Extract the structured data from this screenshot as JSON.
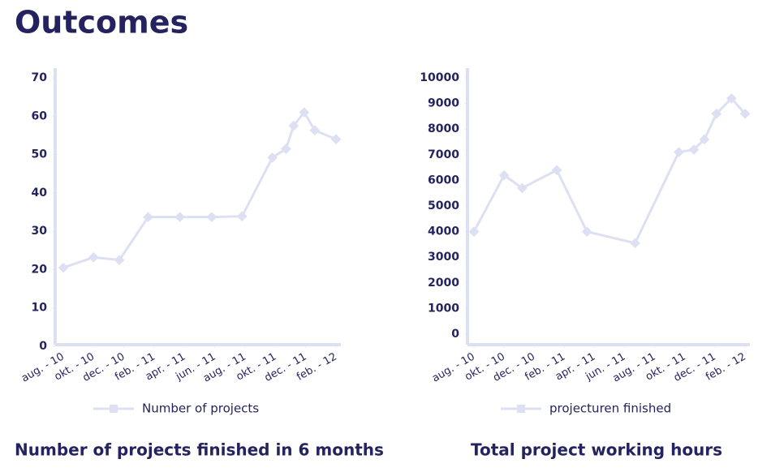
{
  "title": "Outcomes",
  "chart_data": [
    {
      "type": "line",
      "title": "Number of projects finished in 6 months",
      "x": [
        0,
        2,
        3.7,
        5.6,
        7.7,
        9.8,
        11.8,
        13.8,
        14.7,
        15.2,
        15.9,
        16.6,
        18
      ],
      "series": [
        {
          "name": "Number of projects",
          "color": "#dde0f3",
          "values": [
            20.5,
            23.2,
            22.5,
            33.7,
            33.7,
            33.7,
            33.9,
            49.2,
            51.5,
            57.5,
            61,
            56.3,
            54
          ]
        }
      ],
      "xlim": [
        0,
        18
      ],
      "xticks": [
        {
          "value": 0,
          "label": "aug. - 10"
        },
        {
          "value": 2,
          "label": "okt. - 10"
        },
        {
          "value": 4,
          "label": "dec. - 10"
        },
        {
          "value": 6,
          "label": "feb. - 11"
        },
        {
          "value": 8,
          "label": "apr. - 11"
        },
        {
          "value": 10,
          "label": "jun. - 11"
        },
        {
          "value": 12,
          "label": "aug. - 11"
        },
        {
          "value": 14,
          "label": "okt. - 11"
        },
        {
          "value": 16,
          "label": "dec. - 11"
        },
        {
          "value": 18,
          "label": "feb. - 12"
        }
      ],
      "ylim": [
        0,
        70
      ],
      "yticks": [
        0,
        10,
        20,
        30,
        40,
        50,
        60,
        70
      ]
    },
    {
      "type": "line",
      "title": "Total project working hours",
      "x": [
        0,
        2,
        3.2,
        5.5,
        7.5,
        10.7,
        13.6,
        14.6,
        15.3,
        16.1,
        17.1,
        18
      ],
      "series": [
        {
          "name": "projecturen finished",
          "color": "#dde0f3",
          "values": [
            4000,
            6200,
            5700,
            6400,
            4000,
            3550,
            7100,
            7200,
            7600,
            8600,
            9200,
            8600
          ]
        }
      ],
      "xlim": [
        0,
        18
      ],
      "xticks": [
        {
          "value": 0,
          "label": "aug. - 10"
        },
        {
          "value": 2,
          "label": "okt. - 10"
        },
        {
          "value": 4,
          "label": "dec. - 10"
        },
        {
          "value": 6,
          "label": "feb. - 11"
        },
        {
          "value": 8,
          "label": "apr. - 11"
        },
        {
          "value": 10,
          "label": "jun. - 11"
        },
        {
          "value": 12,
          "label": "aug. - 11"
        },
        {
          "value": 14,
          "label": "okt. - 11"
        },
        {
          "value": 16,
          "label": "dec. - 11"
        },
        {
          "value": 18,
          "label": "feb. - 12"
        }
      ],
      "ylim": [
        0,
        10000
      ],
      "yticks": [
        0,
        1000,
        2000,
        3000,
        4000,
        5000,
        6000,
        7000,
        8000,
        9000,
        10000
      ]
    }
  ]
}
